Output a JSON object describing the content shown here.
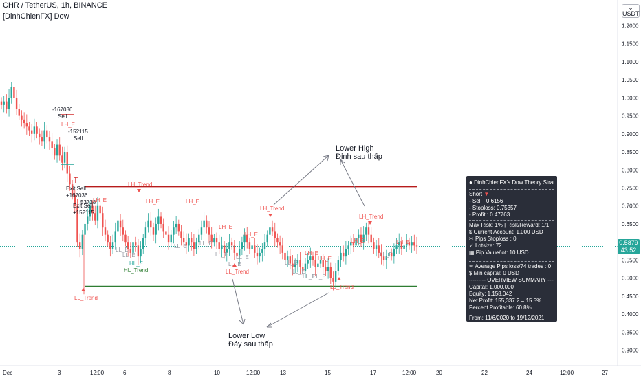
{
  "header": {
    "symbol_line": "CHR / TetherUS, 1h, BINANCE",
    "indicator_line": "[DinhChienFX] Dow"
  },
  "axis": {
    "currency_label": "USDT",
    "price_ticks": [
      "1.2500",
      "1.2000",
      "1.1500",
      "1.1000",
      "1.0500",
      "1.0000",
      "0.9500",
      "0.9000",
      "0.8500",
      "0.8000",
      "0.7500",
      "0.7000",
      "0.6500",
      "0.6000",
      "0.5500",
      "0.5000",
      "0.4500",
      "0.4000",
      "0.3500",
      "0.3000"
    ],
    "time_ticks": [
      "Dec",
      "3",
      "12:00",
      "6",
      "8",
      "10",
      "12:00",
      "13",
      "15",
      "17",
      "12:00",
      "20",
      "22",
      "24",
      "12:00",
      "27"
    ]
  },
  "price_label": {
    "price": "0.5879",
    "countdown": "43:52"
  },
  "annotations": {
    "lower_high_1": "Lower High",
    "lower_high_2": "Đỉnh sau thấp",
    "lower_low_1": "Lower Low",
    "lower_low_2": "Đáy sau thấp"
  },
  "markers": [
    {
      "text": "-167036",
      "kind": "trade"
    },
    {
      "text": "Sell",
      "kind": "trade"
    },
    {
      "text": "LH_E",
      "kind": "pivot"
    },
    {
      "text": "-152115",
      "kind": "trade"
    },
    {
      "text": "Sell",
      "kind": "trade"
    },
    {
      "text": "Exit Sell",
      "kind": "trade"
    },
    {
      "text": "+167036",
      "kind": "trade"
    },
    {
      "text": "Exit Sell",
      "kind": "trade"
    },
    {
      "text": "+152115",
      "kind": "trade"
    },
    {
      "text": "53738",
      "kind": "trade"
    },
    {
      "text": "LH_E",
      "kind": "pivot"
    },
    {
      "text": "LH_Trend",
      "kind": "trend-down"
    },
    {
      "text": "LH_E",
      "kind": "pivot"
    },
    {
      "text": "LH_E",
      "kind": "pivot"
    },
    {
      "text": "LL_E",
      "kind": "pivot"
    },
    {
      "text": "LL_E",
      "kind": "pivot"
    },
    {
      "text": "LL_E",
      "kind": "pivot"
    },
    {
      "text": "HL_E",
      "kind": "pivot"
    },
    {
      "text": "HL_Trend",
      "kind": "trend-up"
    },
    {
      "text": "LL_Trend",
      "kind": "trend-down"
    },
    {
      "text": "LL_E",
      "kind": "pivot"
    },
    {
      "text": "LH_E",
      "kind": "pivot"
    },
    {
      "text": "LL_E",
      "kind": "pivot"
    },
    {
      "text": "LH_E",
      "kind": "pivot"
    },
    {
      "text": "LL_E",
      "kind": "pivot"
    },
    {
      "text": "LH_Trend",
      "kind": "trend-down"
    },
    {
      "text": "LL_E",
      "kind": "pivot"
    },
    {
      "text": "LL_Trend",
      "kind": "trend-down"
    },
    {
      "text": "LH_E",
      "kind": "pivot"
    },
    {
      "text": "LL_E",
      "kind": "pivot"
    },
    {
      "text": "LL_E",
      "kind": "pivot"
    },
    {
      "text": "LH_E",
      "kind": "pivot"
    },
    {
      "text": "LL_E",
      "kind": "pivot"
    },
    {
      "text": "LL_Trend",
      "kind": "trend-down"
    },
    {
      "text": "LH_E",
      "kind": "pivot"
    },
    {
      "text": "LH_Trend",
      "kind": "trend-down"
    },
    {
      "text": "LL_E",
      "kind": "pivot"
    },
    {
      "text": "LH_E",
      "kind": "pivot"
    },
    {
      "text": "LL_E",
      "kind": "pivot"
    }
  ],
  "panel": {
    "title": "DinhChienFX's Dow Theory Strategy",
    "short": "Short",
    "sell": "- Sell   : 0.6156",
    "stoploss": "- Stoploss: 0.75357",
    "profit": "- Profit   : 0.47763",
    "max_risk": "Max Risk: 1% | Risk/Reward: 1/1",
    "current_account": "Current Account: 1,000 USD",
    "pips_stoploss": "Pips Stoploss : 0",
    "lotsize": "Lotsize: 72",
    "pip_value": "Pip Value/lot: 10 USD",
    "avg_pips": "Average Pips loss/74 trades : 0",
    "min_capital": "Min capital: 0 USD",
    "overview": "--------- OVERVIEW SUMMARY ---------",
    "capital": "Capital: 1,000,000",
    "equity": "Equity: 1,158,042",
    "net_profit": "Net Profit: 155,337.2 = 15.5%",
    "percent_profitable": "Percent Profitable: 60.8%",
    "from_to": "From: 11/6/2020 to 19/12/2021"
  },
  "chart_data": {
    "type": "candlestick",
    "y_scale": "linear",
    "ylim": [
      0.28,
      1.26
    ],
    "levels": [
      {
        "name": "stoploss",
        "value": 0.7536,
        "color": "#b71c1c"
      },
      {
        "name": "profit",
        "value": 0.4776,
        "color": "#2e7d32"
      },
      {
        "name": "current",
        "value": 0.5879,
        "color": "#26a69a"
      }
    ],
    "close": [
      0.98,
      0.99,
      0.97,
      1.0,
      1.03,
      1.0,
      0.97,
      0.95,
      0.94,
      0.93,
      0.92,
      0.91,
      0.9,
      0.92,
      0.9,
      0.89,
      0.88,
      0.91,
      0.89,
      0.88,
      0.86,
      0.84,
      0.87,
      0.84,
      0.82,
      0.85,
      0.79,
      0.76,
      0.73,
      0.7,
      0.6,
      0.58,
      0.62,
      0.65,
      0.67,
      0.7,
      0.68,
      0.66,
      0.7,
      0.68,
      0.64,
      0.62,
      0.6,
      0.58,
      0.6,
      0.63,
      0.66,
      0.64,
      0.62,
      0.6,
      0.58,
      0.57,
      0.6,
      0.59,
      0.56,
      0.58,
      0.61,
      0.64,
      0.66,
      0.64,
      0.62,
      0.65,
      0.67,
      0.65,
      0.63,
      0.62,
      0.6,
      0.62,
      0.64,
      0.65,
      0.63,
      0.61,
      0.6,
      0.59,
      0.61,
      0.6,
      0.58,
      0.6,
      0.62,
      0.64,
      0.66,
      0.64,
      0.62,
      0.6,
      0.61,
      0.6,
      0.58,
      0.59,
      0.57,
      0.58,
      0.6,
      0.59,
      0.57,
      0.56,
      0.58,
      0.6,
      0.62,
      0.6,
      0.58,
      0.59,
      0.57,
      0.56,
      0.57,
      0.58,
      0.6,
      0.62,
      0.64,
      0.63,
      0.61,
      0.6,
      0.59,
      0.57,
      0.55,
      0.56,
      0.54,
      0.53,
      0.54,
      0.55,
      0.53,
      0.52,
      0.54,
      0.55,
      0.56,
      0.55,
      0.53,
      0.54,
      0.55,
      0.53,
      0.52,
      0.53,
      0.5,
      0.49,
      0.52,
      0.55,
      0.57,
      0.56,
      0.58,
      0.59,
      0.6,
      0.59,
      0.61,
      0.62,
      0.6,
      0.62,
      0.64,
      0.62,
      0.6,
      0.58,
      0.59,
      0.57,
      0.56,
      0.55,
      0.56,
      0.57,
      0.56,
      0.58,
      0.59,
      0.6,
      0.58,
      0.59,
      0.6,
      0.59,
      0.6,
      0.59,
      0.5879
    ]
  }
}
